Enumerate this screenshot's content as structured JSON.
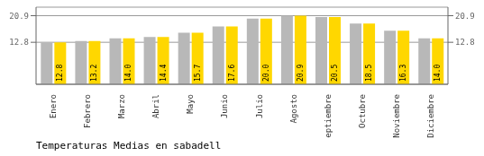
{
  "chart_data": {
    "type": "bar",
    "title": "Temperaturas Medias en sabadell",
    "categories": [
      "Enero",
      "Febrero",
      "Marzo",
      "Abril",
      "Mayo",
      "Junio",
      "Julio",
      "Agosto",
      "Septiembre",
      "Octubre",
      "Noviembre",
      "Diciembre"
    ],
    "series": [
      {
        "color": "#B8B8B8",
        "values": [
          12.8,
          13.2,
          14.0,
          14.4,
          15.7,
          17.6,
          20.0,
          20.9,
          20.5,
          18.5,
          16.3,
          14.0
        ]
      },
      {
        "color": "#FFD700",
        "values": [
          12.8,
          13.2,
          14.0,
          14.4,
          15.7,
          17.6,
          20.0,
          20.9,
          20.5,
          18.5,
          16.3,
          14.0
        ],
        "data_labels": true,
        "value_labels": [
          "12.8",
          "13.2",
          "14.0",
          "14.4",
          "15.7",
          "17.6",
          "20.0",
          "20.9",
          "20.5",
          "18.5",
          "16.3",
          "14.0"
        ]
      }
    ],
    "ylim": [
      0,
      23.5
    ],
    "yticks": [
      12.8,
      20.9
    ],
    "y2lim": [
      0,
      23.5
    ],
    "y2ticks": [
      12.8,
      20.9
    ],
    "grid": true
  }
}
